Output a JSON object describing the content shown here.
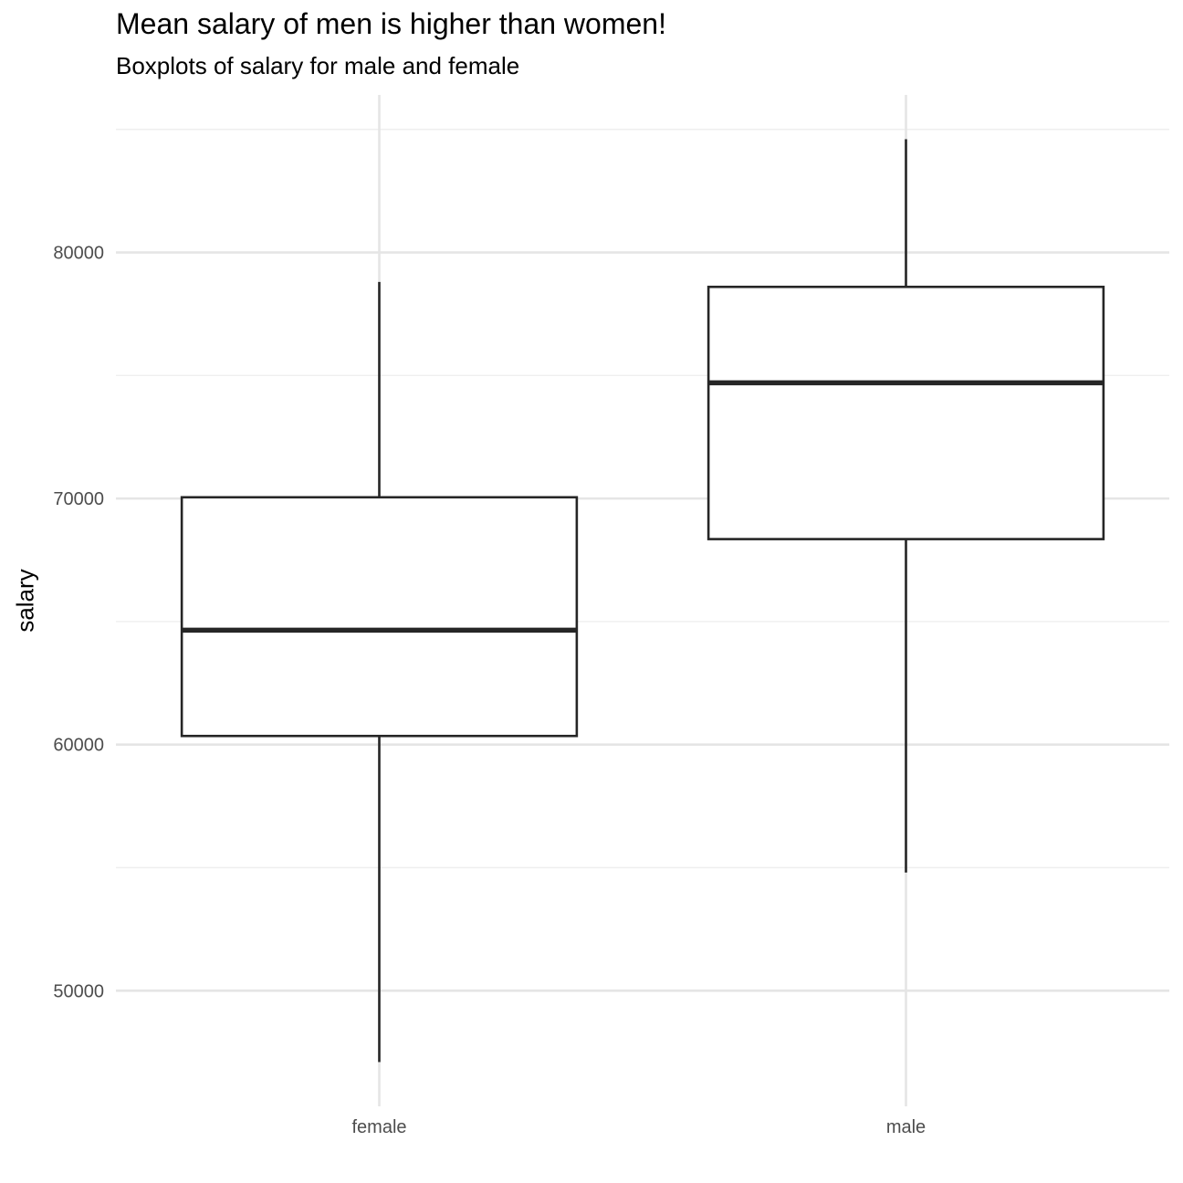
{
  "chart_data": {
    "type": "boxplot",
    "title": "Mean salary of men is higher than women!",
    "subtitle": "Boxplots of salary for male and female",
    "xlabel": "",
    "ylabel": "salary",
    "categories": [
      "female",
      "male"
    ],
    "boxes": [
      {
        "category": "female",
        "whisker_low": 47100,
        "q1": 60350,
        "median": 64650,
        "q3": 70050,
        "whisker_high": 78800
      },
      {
        "category": "male",
        "whisker_low": 54800,
        "q1": 68350,
        "median": 74700,
        "q3": 78600,
        "whisker_high": 84600
      }
    ],
    "ylim": [
      45300,
      86400
    ],
    "y_ticks": [
      50000,
      60000,
      70000,
      80000
    ],
    "y_tick_labels": [
      "50000",
      "60000",
      "70000",
      "80000"
    ],
    "grid": true,
    "colors": {
      "box_fill": "#ffffff",
      "box_stroke": "#262626",
      "grid_major": "#e5e5e5",
      "grid_minor": "#efefef"
    }
  }
}
